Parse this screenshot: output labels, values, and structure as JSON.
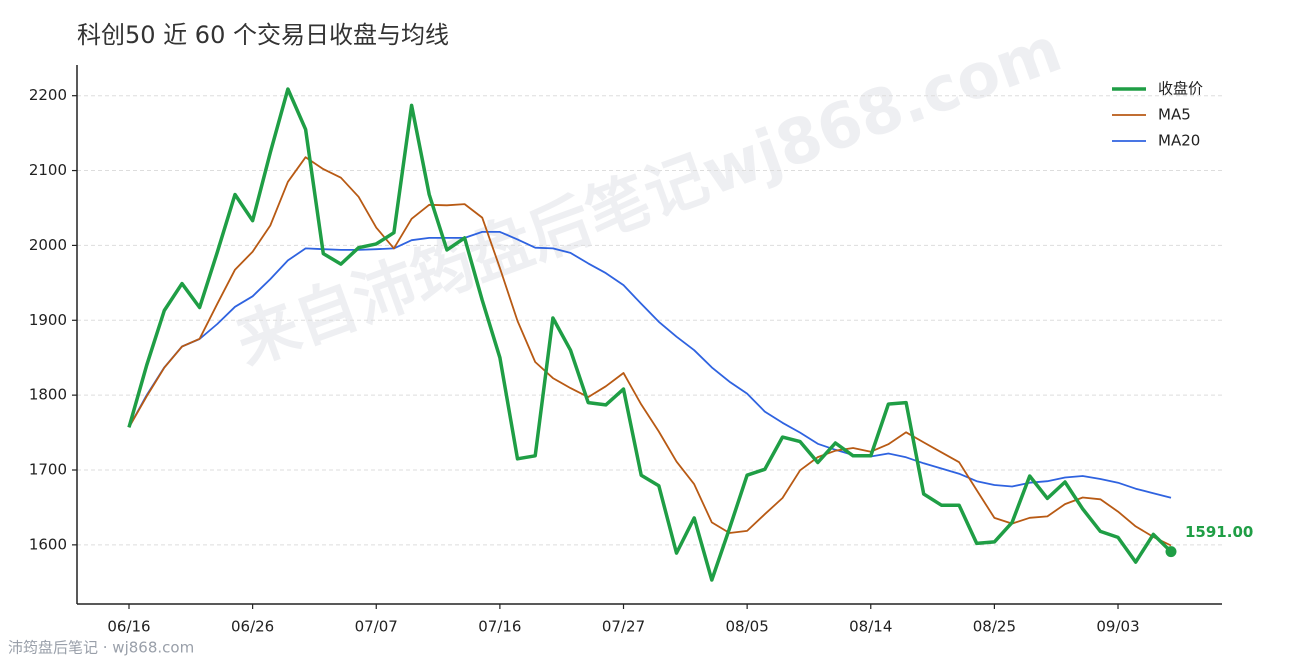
{
  "chart_data": {
    "type": "line",
    "title": "科创50 近 60 个交易日收盘与均线",
    "watermark": "来自沛筠盘后笔记wj868.com",
    "footer": "沛筠盘后笔记 · wj868.com",
    "end_label": "1591.00",
    "categories": [
      "06/16",
      null,
      null,
      null,
      null,
      null,
      null,
      "06/26",
      null,
      null,
      null,
      null,
      null,
      null,
      "07/07",
      null,
      null,
      null,
      null,
      null,
      null,
      "07/16",
      null,
      null,
      null,
      null,
      null,
      null,
      "07/27",
      null,
      null,
      null,
      null,
      null,
      null,
      "08/05",
      null,
      null,
      null,
      null,
      null,
      null,
      "08/14",
      null,
      null,
      null,
      null,
      null,
      null,
      "08/25",
      null,
      null,
      null,
      null,
      null,
      null,
      "09/03",
      null,
      null,
      null
    ],
    "series": [
      {
        "name": "收盘价",
        "color": "#1f9e45",
        "width": 3.5,
        "values": [
          1757,
          1840,
          1913,
          1949,
          1917,
          1991,
          2068,
          2033,
          2124,
          2209,
          2155,
          1989,
          1975,
          1997,
          2002,
          2017,
          2187,
          2068,
          1994,
          2010,
          1927,
          1850,
          1715,
          1719,
          1903,
          1860,
          1790,
          1787,
          1808,
          1693,
          1679,
          1589,
          1636,
          1553,
          1622,
          1693,
          1701,
          1744,
          1738,
          1710,
          1736,
          1719,
          1719,
          1788,
          1790,
          1668,
          1653,
          1653,
          1602,
          1604,
          1630,
          1692,
          1662,
          1684,
          1648,
          1618,
          1610,
          1577,
          1614,
          1591
        ]
      },
      {
        "name": "MA5",
        "color": "#b85a14",
        "width": 1.8,
        "values": [
          1757,
          1798.5,
          1836.7,
          1864.8,
          1875.2,
          1922,
          1967.6,
          1991.6,
          2026.6,
          2085,
          2117.8,
          2102,
          2090.4,
          2065,
          2023.6,
          1996,
          2035.6,
          2054.2,
          2053.6,
          2055.2,
          2037.2,
          1969.8,
          1899.2,
          1844.2,
          1822.8,
          1809.4,
          1797.4,
          1811.8,
          1829.6,
          1787.6,
          1751.4,
          1711.2,
          1681,
          1630,
          1615.8,
          1618.6,
          1641,
          1662.6,
          1699.6,
          1717.2,
          1725.8,
          1729.4,
          1724.4,
          1734.4,
          1750.4,
          1736.8,
          1723.6,
          1710.4,
          1673.2,
          1636,
          1628.4,
          1636.2,
          1638,
          1654.4,
          1663.2,
          1660.8,
          1644.4,
          1624.6,
          1610.6,
          1599.2
        ]
      },
      {
        "name": "MA20",
        "color": "#2f63e0",
        "width": 1.8,
        "values": [
          1757,
          1800,
          1837,
          1865,
          1875,
          1895,
          1918,
          1932,
          1955,
          1980,
          1996,
          1995,
          1994,
          1994,
          1995,
          1996,
          2007,
          2010,
          2010,
          2010,
          2018,
          2018,
          2008,
          1997,
          1996,
          1990,
          1976,
          1963,
          1947,
          1922,
          1898,
          1878,
          1860,
          1837,
          1818,
          1802,
          1778,
          1763,
          1750,
          1735,
          1727,
          1720,
          1718,
          1722,
          1717,
          1709,
          1702,
          1695,
          1685,
          1680,
          1678,
          1683,
          1685,
          1690,
          1692,
          1688,
          1683,
          1675,
          1669,
          1663
        ]
      }
    ],
    "ylim": [
      1521,
      2241
    ],
    "yticks": [
      1600,
      1700,
      1800,
      1900,
      2000,
      2100,
      2200
    ],
    "grid": true,
    "legend": "upper right"
  }
}
